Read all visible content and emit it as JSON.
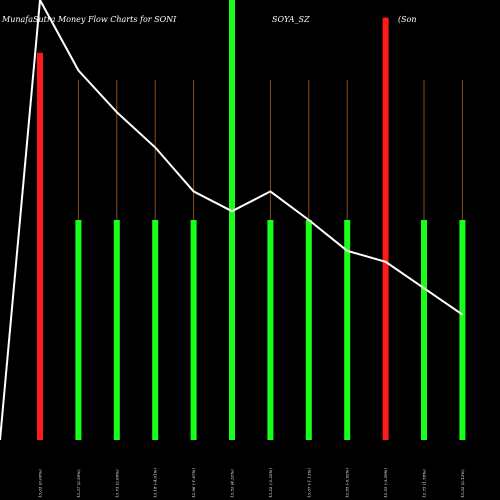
{
  "header": {
    "part1": "MunafaSutra  Money Flow  Charts for SONI",
    "part2": "SOYA_SZ",
    "part3": "(Son"
  },
  "chart_data": {
    "type": "bar",
    "title": "MunafaSutra  Money Flow  Charts for SONI SOYA_SZ (Son",
    "categories": [
      "13.03 (0.00%)",
      "13.37 (2.59%)",
      "13.73 (2.69%)",
      "13.18 (-4.01%)",
      "12.96 (-1.67%)",
      "13.52 (4.32%)",
      "13.22 (-2.22%)",
      "13.07 (-1.13%)",
      "12.95 (-0.92%)",
      "12.55 (-3.09%)",
      "12.75 (1.59%)",
      "13.02 (2.12%)"
    ],
    "bar_colors": [
      "red",
      "green",
      "green",
      "green",
      "green",
      "green",
      "green",
      "green",
      "green",
      "red",
      "green",
      "green"
    ],
    "bar_heights": [
      0.88,
      0.5,
      0.5,
      0.5,
      0.5,
      1.0,
      0.5,
      0.5,
      0.5,
      0.96,
      0.5,
      0.5
    ],
    "line": [
      1.0,
      0.84,
      0.745,
      0.665,
      0.565,
      0.52,
      0.565,
      0.5,
      0.43,
      0.405,
      0.345,
      0.285
    ],
    "line_start": 0.0,
    "colors": {
      "red": "#ff1a1a",
      "green": "#1aff1a",
      "line": "#ffffff",
      "guide": "#8a4a1a"
    }
  }
}
